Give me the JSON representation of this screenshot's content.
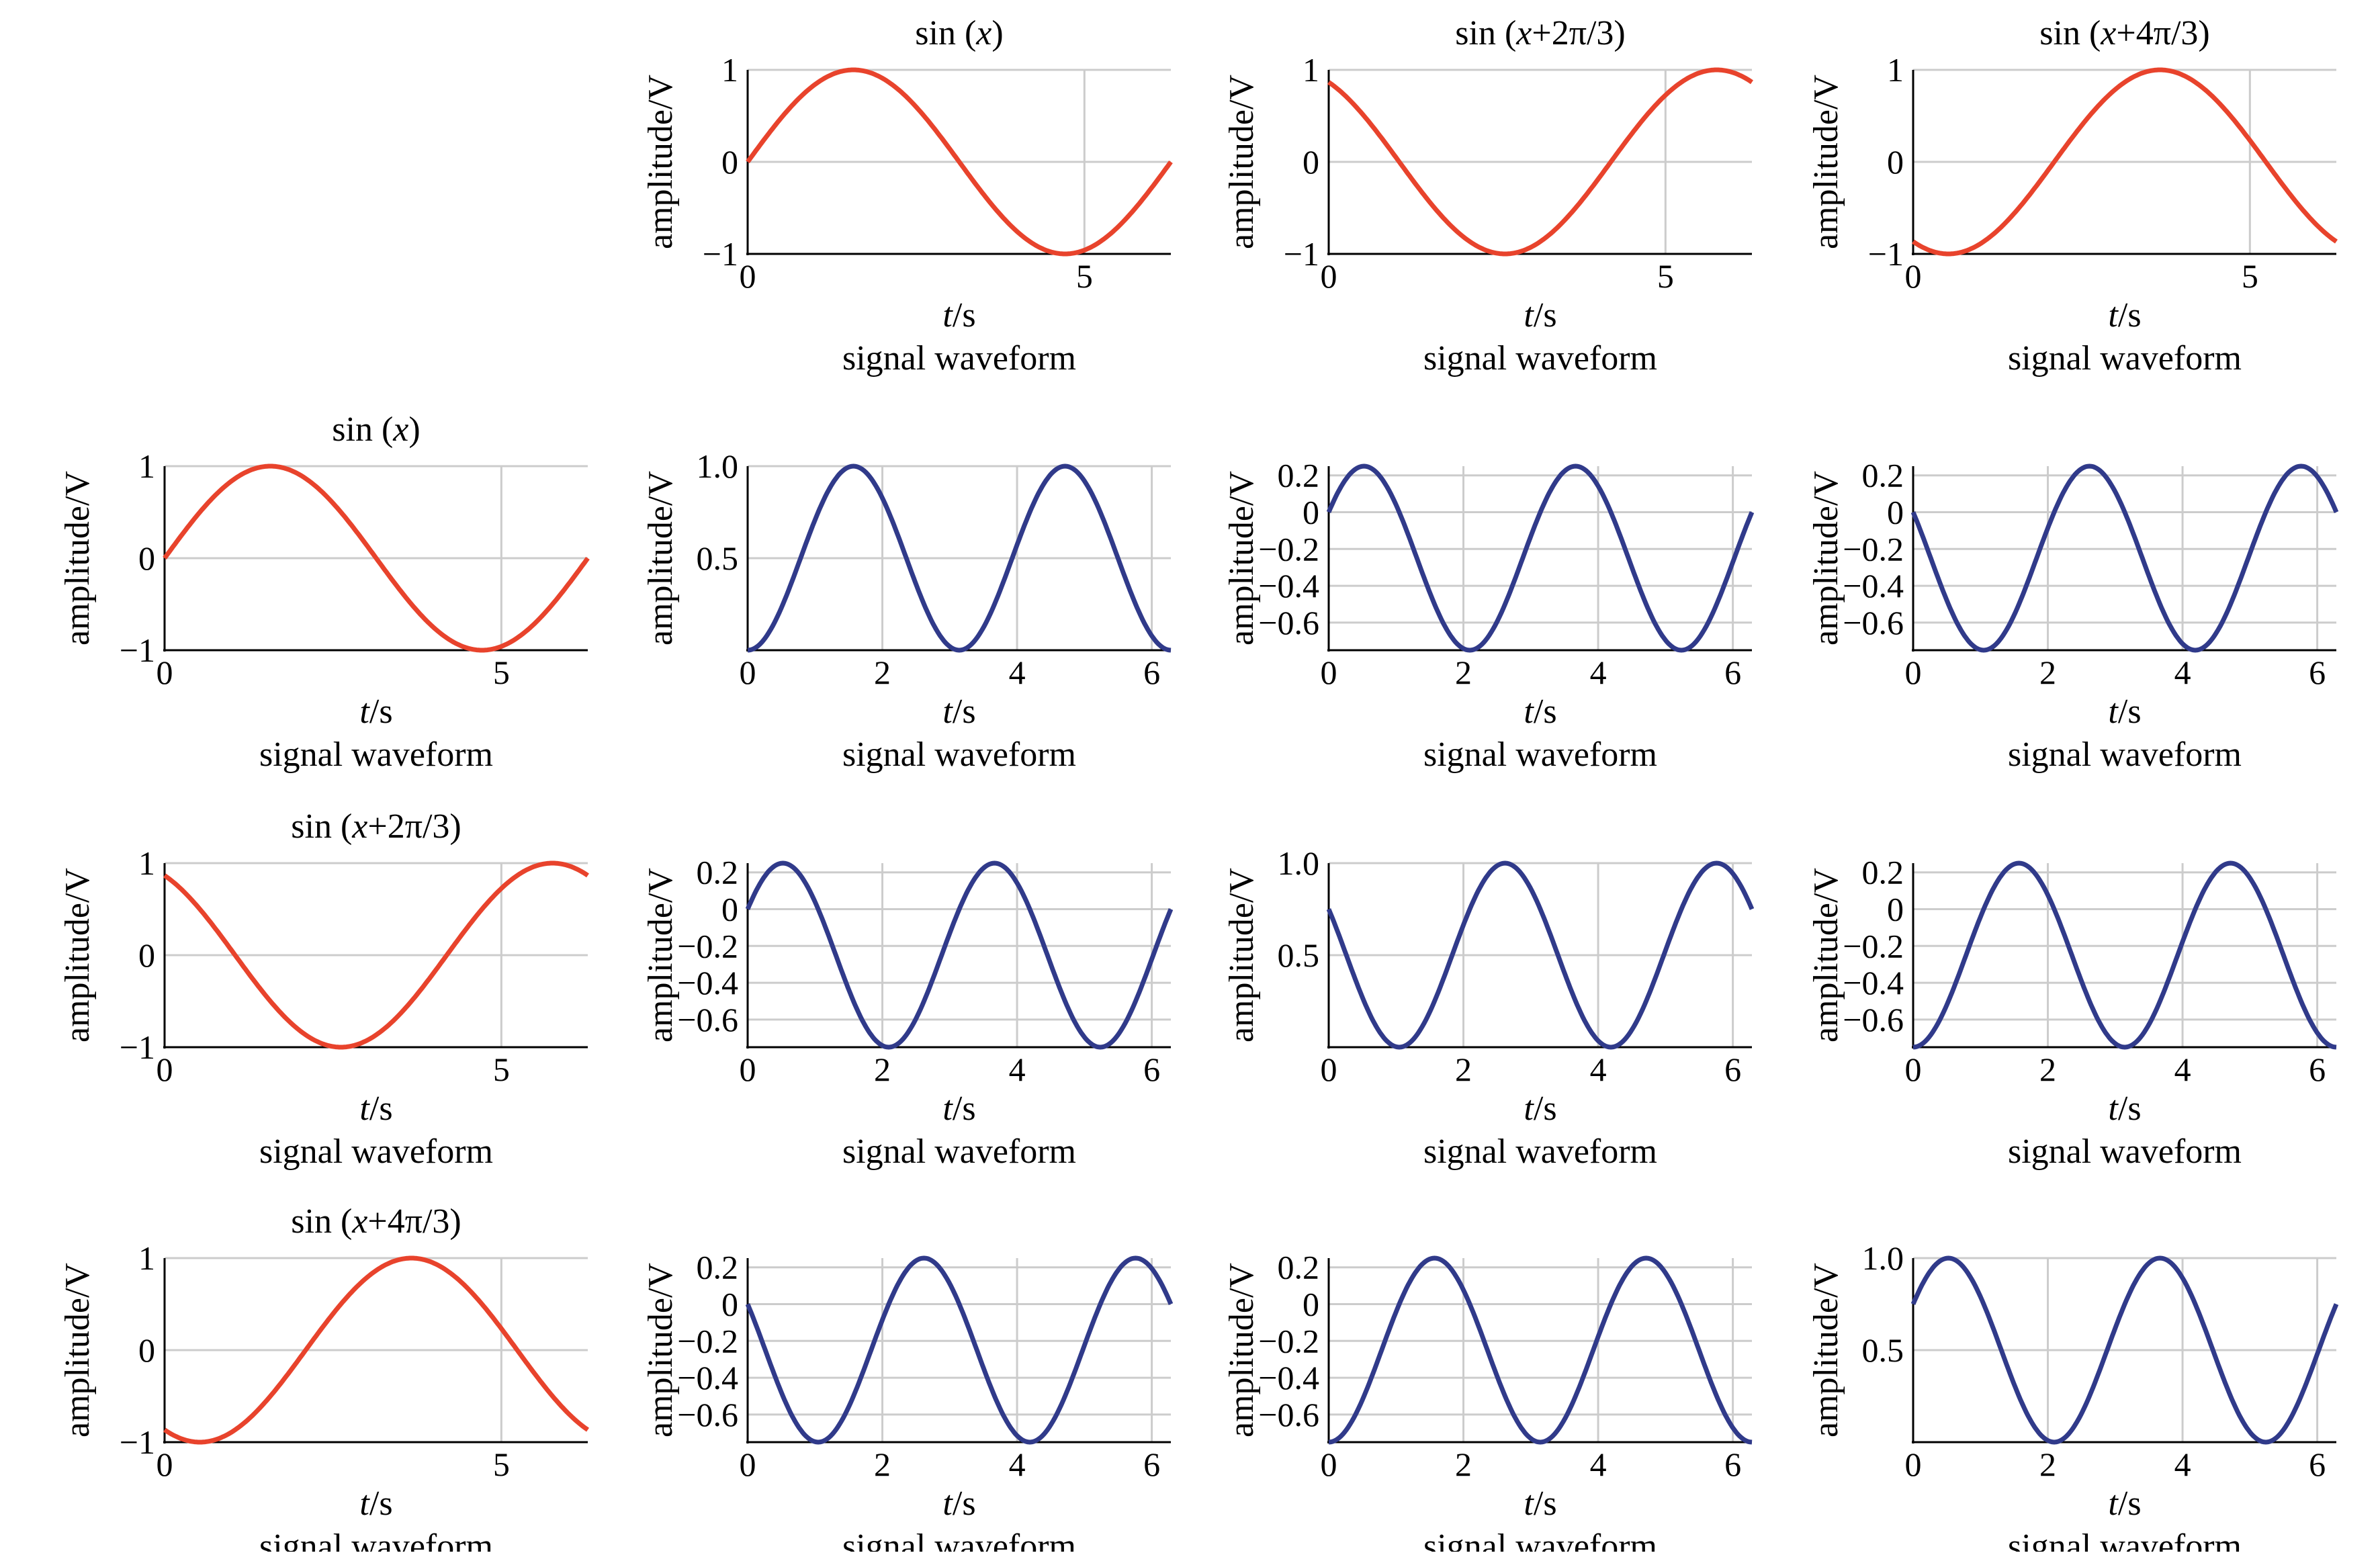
{
  "colors": {
    "red_series": "#e8432c",
    "blue_series": "#303a8a",
    "grid": "#cccccc",
    "axis": "#000000"
  },
  "chart_data": [
    {
      "id": "r0c1",
      "type": "line",
      "title_parts": [
        "sin (",
        "x",
        ")"
      ],
      "xlabel_parts": [
        "t",
        "/s"
      ],
      "caption": "signal waveform",
      "ylabel": "amplitude/V",
      "xlim": [
        0,
        6.2832
      ],
      "ylim": [
        -1,
        1
      ],
      "xticks": [
        0,
        5
      ],
      "xtick_labels": [
        "0",
        "5"
      ],
      "yticks": [
        -1,
        0,
        1
      ],
      "ytick_labels": [
        "−1",
        "0",
        "1"
      ],
      "grid": true,
      "series": [
        {
          "function": "sin",
          "phase": 0
        }
      ]
    },
    {
      "id": "r0c2",
      "type": "line",
      "title_parts": [
        "sin (",
        "x",
        "+2π/3)"
      ],
      "xlabel_parts": [
        "t",
        "/s"
      ],
      "caption": "signal waveform",
      "ylabel": "amplitude/V",
      "xlim": [
        0,
        6.2832
      ],
      "ylim": [
        -1,
        1
      ],
      "xticks": [
        0,
        5
      ],
      "xtick_labels": [
        "0",
        "5"
      ],
      "yticks": [
        -1,
        0,
        1
      ],
      "ytick_labels": [
        "−1",
        "0",
        "1"
      ],
      "grid": true,
      "series": [
        {
          "function": "sin",
          "phase": 2.0944
        }
      ]
    },
    {
      "id": "r0c3",
      "type": "line",
      "title_parts": [
        "sin (",
        "x",
        "+4π/3)"
      ],
      "xlabel_parts": [
        "t",
        "/s"
      ],
      "caption": "signal waveform",
      "ylabel": "amplitude/V",
      "xlim": [
        0,
        6.2832
      ],
      "ylim": [
        -1,
        1
      ],
      "xticks": [
        0,
        5
      ],
      "xtick_labels": [
        "0",
        "5"
      ],
      "yticks": [
        -1,
        0,
        1
      ],
      "ytick_labels": [
        "−1",
        "0",
        "1"
      ],
      "grid": true,
      "series": [
        {
          "function": "sin",
          "phase": 4.1888
        }
      ]
    },
    {
      "id": "r1c0",
      "type": "line",
      "title_parts": [
        "sin (",
        "x",
        ")"
      ],
      "xlabel_parts": [
        "t",
        "/s"
      ],
      "caption": "signal waveform",
      "ylabel": "amplitude/V",
      "xlim": [
        0,
        6.2832
      ],
      "ylim": [
        -1,
        1
      ],
      "xticks": [
        0,
        5
      ],
      "xtick_labels": [
        "0",
        "5"
      ],
      "yticks": [
        -1,
        0,
        1
      ],
      "ytick_labels": [
        "−1",
        "0",
        "1"
      ],
      "grid": true,
      "series": [
        {
          "function": "sin",
          "phase": 0
        }
      ]
    },
    {
      "id": "r1c1",
      "type": "line",
      "xlabel_parts": [
        "t",
        "/s"
      ],
      "caption": "signal waveform",
      "ylabel": "amplitude/V",
      "xlim": [
        0,
        6.2832
      ],
      "ylim": [
        0,
        1
      ],
      "xticks": [
        0,
        2,
        4,
        6
      ],
      "xtick_labels": [
        "0",
        "2",
        "4",
        "6"
      ],
      "yticks": [
        0.5,
        1.0
      ],
      "ytick_labels": [
        "0.5",
        "1.0"
      ],
      "grid": true,
      "series": [
        {
          "function": "product",
          "phase_a": 0,
          "phase_b": 0
        }
      ]
    },
    {
      "id": "r1c2",
      "type": "line",
      "xlabel_parts": [
        "t",
        "/s"
      ],
      "caption": "signal waveform",
      "ylabel": "amplitude/V",
      "xlim": [
        0,
        6.2832
      ],
      "ylim": [
        -0.75,
        0.25
      ],
      "xticks": [
        0,
        2,
        4,
        6
      ],
      "xtick_labels": [
        "0",
        "2",
        "4",
        "6"
      ],
      "yticks": [
        0.2,
        0,
        -0.2,
        -0.4,
        -0.6
      ],
      "ytick_labels": [
        "0.2",
        "0",
        "−0.2",
        "−0.4",
        "−0.6"
      ],
      "grid": true,
      "series": [
        {
          "function": "product",
          "phase_a": 0,
          "phase_b": 2.0944
        }
      ]
    },
    {
      "id": "r1c3",
      "type": "line",
      "xlabel_parts": [
        "t",
        "/s"
      ],
      "caption": "signal waveform",
      "ylabel": "amplitude/V",
      "xlim": [
        0,
        6.2832
      ],
      "ylim": [
        -0.75,
        0.25
      ],
      "xticks": [
        0,
        2,
        4,
        6
      ],
      "xtick_labels": [
        "0",
        "2",
        "4",
        "6"
      ],
      "yticks": [
        0.2,
        0,
        -0.2,
        -0.4,
        -0.6
      ],
      "ytick_labels": [
        "0.2",
        "0",
        "−0.2",
        "−0.4",
        "−0.6"
      ],
      "grid": true,
      "series": [
        {
          "function": "product",
          "phase_a": 0,
          "phase_b": 4.1888
        }
      ]
    },
    {
      "id": "r2c0",
      "type": "line",
      "title_parts": [
        "sin (",
        "x",
        "+2π/3)"
      ],
      "xlabel_parts": [
        "t",
        "/s"
      ],
      "caption": "signal waveform",
      "ylabel": "amplitude/V",
      "xlim": [
        0,
        6.2832
      ],
      "ylim": [
        -1,
        1
      ],
      "xticks": [
        0,
        5
      ],
      "xtick_labels": [
        "0",
        "5"
      ],
      "yticks": [
        -1,
        0,
        1
      ],
      "ytick_labels": [
        "−1",
        "0",
        "1"
      ],
      "grid": true,
      "series": [
        {
          "function": "sin",
          "phase": 2.0944
        }
      ]
    },
    {
      "id": "r2c1",
      "type": "line",
      "xlabel_parts": [
        "t",
        "/s"
      ],
      "caption": "signal waveform",
      "ylabel": "amplitude/V",
      "xlim": [
        0,
        6.2832
      ],
      "ylim": [
        -0.75,
        0.25
      ],
      "xticks": [
        0,
        2,
        4,
        6
      ],
      "xtick_labels": [
        "0",
        "2",
        "4",
        "6"
      ],
      "yticks": [
        0.2,
        0,
        -0.2,
        -0.4,
        -0.6
      ],
      "ytick_labels": [
        "0.2",
        "0",
        "−0.2",
        "−0.4",
        "−0.6"
      ],
      "grid": true,
      "series": [
        {
          "function": "product",
          "phase_a": 2.0944,
          "phase_b": 0
        }
      ]
    },
    {
      "id": "r2c2",
      "type": "line",
      "xlabel_parts": [
        "t",
        "/s"
      ],
      "caption": "signal waveform",
      "ylabel": "amplitude/V",
      "xlim": [
        0,
        6.2832
      ],
      "ylim": [
        0,
        1
      ],
      "xticks": [
        0,
        2,
        4,
        6
      ],
      "xtick_labels": [
        "0",
        "2",
        "4",
        "6"
      ],
      "yticks": [
        0.5,
        1.0
      ],
      "ytick_labels": [
        "0.5",
        "1.0"
      ],
      "grid": true,
      "series": [
        {
          "function": "product",
          "phase_a": 2.0944,
          "phase_b": 2.0944
        }
      ]
    },
    {
      "id": "r2c3",
      "type": "line",
      "xlabel_parts": [
        "t",
        "/s"
      ],
      "caption": "signal waveform",
      "ylabel": "amplitude/V",
      "xlim": [
        0,
        6.2832
      ],
      "ylim": [
        -0.75,
        0.25
      ],
      "xticks": [
        0,
        2,
        4,
        6
      ],
      "xtick_labels": [
        "0",
        "2",
        "4",
        "6"
      ],
      "yticks": [
        0.2,
        0,
        -0.2,
        -0.4,
        -0.6
      ],
      "ytick_labels": [
        "0.2",
        "0",
        "−0.2",
        "−0.4",
        "−0.6"
      ],
      "grid": true,
      "series": [
        {
          "function": "product",
          "phase_a": 2.0944,
          "phase_b": 4.1888
        }
      ]
    },
    {
      "id": "r3c0",
      "type": "line",
      "title_parts": [
        "sin (",
        "x",
        "+4π/3)"
      ],
      "xlabel_parts": [
        "t",
        "/s"
      ],
      "caption": "signal waveform",
      "ylabel": "amplitude/V",
      "xlim": [
        0,
        6.2832
      ],
      "ylim": [
        -1,
        1
      ],
      "xticks": [
        0,
        5
      ],
      "xtick_labels": [
        "0",
        "5"
      ],
      "yticks": [
        -1,
        0,
        1
      ],
      "ytick_labels": [
        "−1",
        "0",
        "1"
      ],
      "grid": true,
      "series": [
        {
          "function": "sin",
          "phase": 4.1888
        }
      ]
    },
    {
      "id": "r3c1",
      "type": "line",
      "xlabel_parts": [
        "t",
        "/s"
      ],
      "caption": "signal waveform",
      "ylabel": "amplitude/V",
      "xlim": [
        0,
        6.2832
      ],
      "ylim": [
        -0.75,
        0.25
      ],
      "xticks": [
        0,
        2,
        4,
        6
      ],
      "xtick_labels": [
        "0",
        "2",
        "4",
        "6"
      ],
      "yticks": [
        0.2,
        0,
        -0.2,
        -0.4,
        -0.6
      ],
      "ytick_labels": [
        "0.2",
        "0",
        "−0.2",
        "−0.4",
        "−0.6"
      ],
      "grid": true,
      "series": [
        {
          "function": "product",
          "phase_a": 4.1888,
          "phase_b": 0
        }
      ]
    },
    {
      "id": "r3c2",
      "type": "line",
      "xlabel_parts": [
        "t",
        "/s"
      ],
      "caption": "signal waveform",
      "ylabel": "amplitude/V",
      "xlim": [
        0,
        6.2832
      ],
      "ylim": [
        -0.75,
        0.25
      ],
      "xticks": [
        0,
        2,
        4,
        6
      ],
      "xtick_labels": [
        "0",
        "2",
        "4",
        "6"
      ],
      "yticks": [
        0.2,
        0,
        -0.2,
        -0.4,
        -0.6
      ],
      "ytick_labels": [
        "0.2",
        "0",
        "−0.2",
        "−0.4",
        "−0.6"
      ],
      "grid": true,
      "series": [
        {
          "function": "product",
          "phase_a": 4.1888,
          "phase_b": 2.0944
        }
      ]
    },
    {
      "id": "r3c3",
      "type": "line",
      "xlabel_parts": [
        "t",
        "/s"
      ],
      "caption": "signal waveform",
      "ylabel": "amplitude/V",
      "xlim": [
        0,
        6.2832
      ],
      "ylim": [
        0,
        1
      ],
      "xticks": [
        0,
        2,
        4,
        6
      ],
      "xtick_labels": [
        "0",
        "2",
        "4",
        "6"
      ],
      "yticks": [
        0.5,
        1.0
      ],
      "ytick_labels": [
        "0.5",
        "1.0"
      ],
      "grid": true,
      "series": [
        {
          "function": "product",
          "phase_a": 4.1888,
          "phase_b": 4.1888
        }
      ]
    }
  ]
}
